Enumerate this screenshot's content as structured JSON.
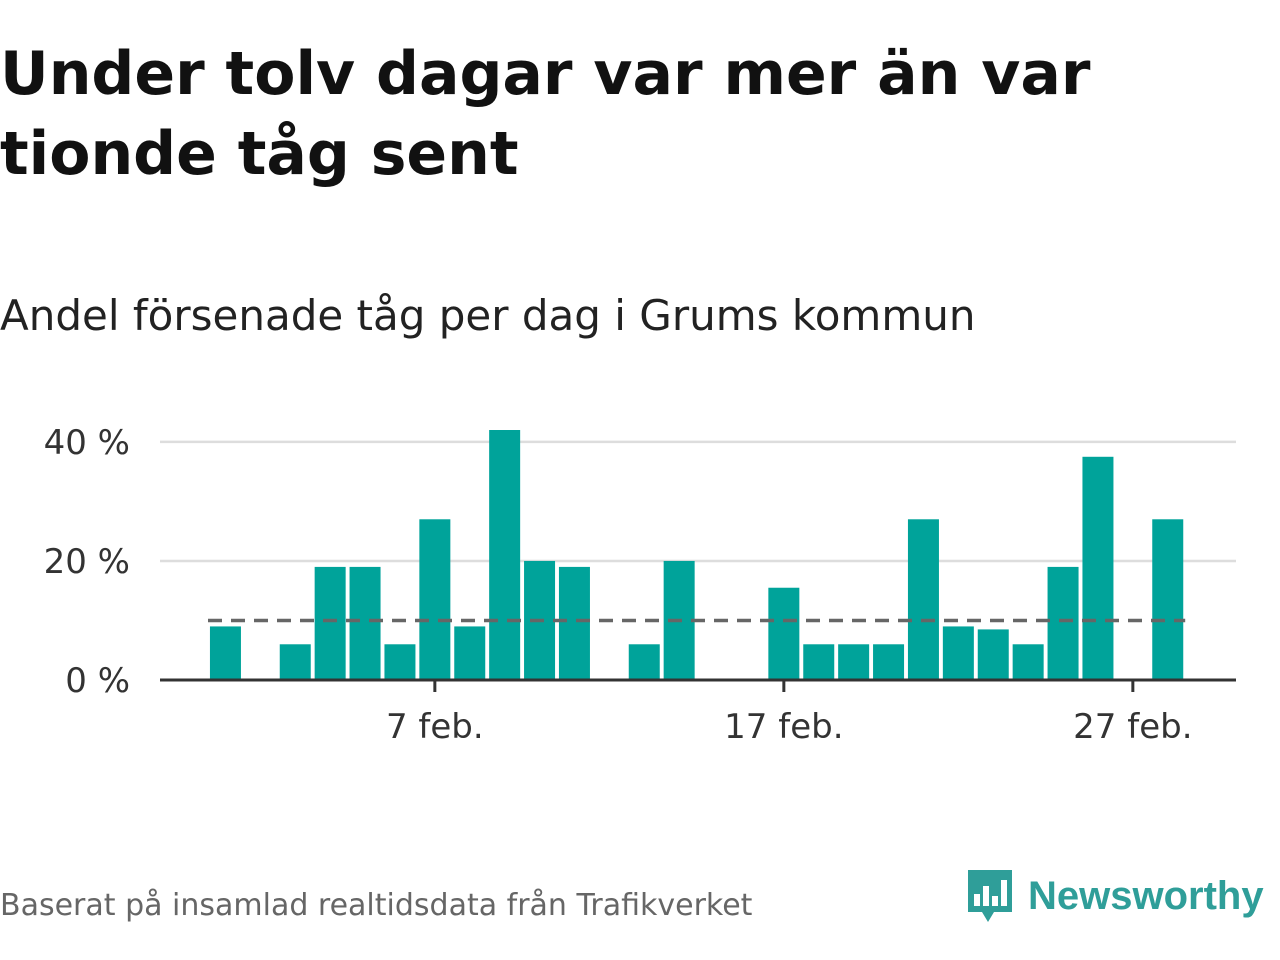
{
  "header": {
    "title": "Under tolv dagar var mer än var tionde tåg sent",
    "subtitle": "Andel försenade tåg per dag i Grums kommun"
  },
  "footer": {
    "source": "Baserat på insamlad realtidsdata från Trafikverket",
    "brand": "Newsworthy"
  },
  "colors": {
    "bar": "#00a39a",
    "reference_line": "#666666",
    "grid": "#dddddd",
    "axis": "#333333",
    "brand": "#2f9e99"
  },
  "chart_data": {
    "type": "bar",
    "title": "Under tolv dagar var mer än var tionde tåg sent",
    "subtitle": "Andel försenade tåg per dag i Grums kommun",
    "xlabel": "",
    "ylabel": "",
    "x": [
      "1 feb.",
      "2 feb.",
      "3 feb.",
      "4 feb.",
      "5 feb.",
      "6 feb.",
      "7 feb.",
      "8 feb.",
      "9 feb.",
      "10 feb.",
      "11 feb.",
      "12 feb.",
      "13 feb.",
      "14 feb.",
      "15 feb.",
      "16 feb.",
      "17 feb.",
      "18 feb.",
      "19 feb.",
      "20 feb.",
      "21 feb.",
      "22 feb.",
      "23 feb.",
      "24 feb.",
      "25 feb.",
      "26 feb.",
      "27 feb.",
      "28 feb."
    ],
    "values": [
      9,
      0,
      6,
      19,
      19,
      6,
      27,
      9,
      42,
      20,
      19,
      0,
      6,
      20,
      0,
      0,
      15.5,
      6,
      6,
      6,
      27,
      9,
      8.5,
      6,
      19,
      37.5,
      0,
      27
    ],
    "unit": "%",
    "reference_line": {
      "value": 10,
      "style": "dashed"
    },
    "ylim": [
      0,
      42
    ],
    "yticks": [
      0,
      20,
      40
    ],
    "ytick_labels": [
      "0 %",
      "20 %",
      "40 %"
    ],
    "xticks": [
      "7 feb.",
      "17 feb.",
      "27 feb."
    ],
    "grid": true,
    "legend": "none"
  }
}
